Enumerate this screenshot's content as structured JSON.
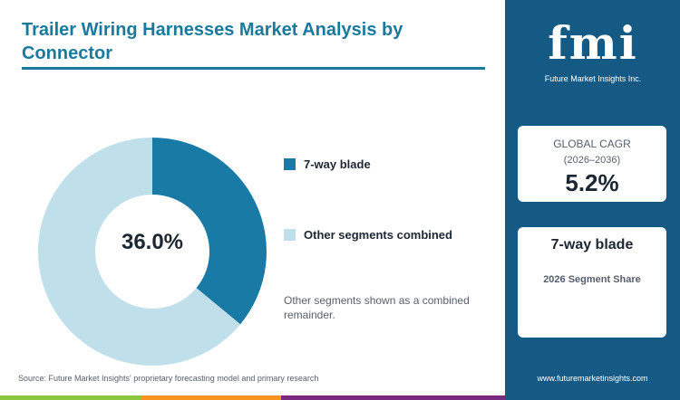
{
  "title": "Trailer Wiring Harnesses Market Analysis by Connector",
  "chart_data": {
    "type": "pie",
    "style": "donut",
    "series": [
      {
        "name": "7-way blade",
        "value": 36.0,
        "color": "#1a7aa6"
      },
      {
        "name": "Other segments combined",
        "value": 64.0,
        "color": "#bfdfeb"
      }
    ],
    "center_label": "36.0%"
  },
  "legend_note": "Other segments shown as a combined remainder.",
  "source": "Source: Future Market Insights' proprietary forecasting model and primary research",
  "sidebar": {
    "logo_text": "fmi",
    "logo_sub": "Future Market Insights Inc.",
    "cagr_label": "GLOBAL CAGR",
    "cagr_period": "(2026–2036)",
    "cagr_value": "5.2%",
    "segment_title": "7-way blade",
    "segment_sub": "2026 Segment Share",
    "website": "www.futuremarketinsights.com"
  },
  "colors": {
    "accent": "#1a7a9e",
    "sidebar_bg": "#155a84",
    "bar_green": "#8cc63f",
    "bar_orange": "#f7931e",
    "bar_purple": "#7a2a7e"
  }
}
